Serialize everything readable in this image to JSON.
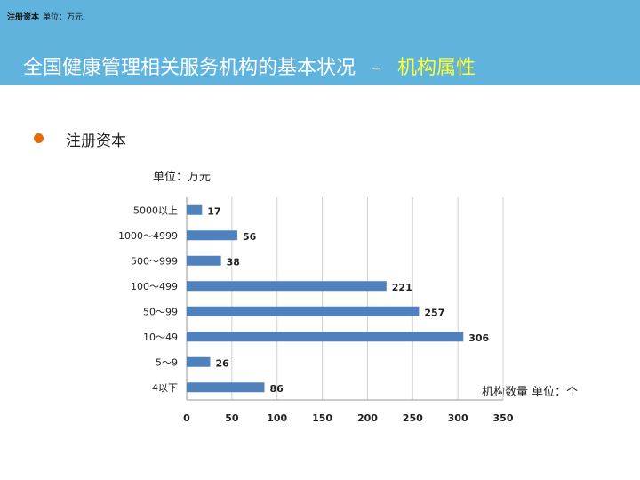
{
  "header": {
    "corner_bold": "注册资本",
    "corner_unit": "单位：万元",
    "title_main": "全国健康管理相关服务机构的基本状况",
    "title_dash": "–",
    "title_accent": "机构属性"
  },
  "section": {
    "label": "注册资本"
  },
  "colors": {
    "header_bg": "#5fb3dc",
    "accent": "#ffff33",
    "bullet": "#e36c0a",
    "bar": "#4f81bd",
    "grid": "#d0d0d0"
  },
  "chart_data": {
    "type": "bar",
    "orientation": "horizontal",
    "categories": [
      "5000以上",
      "1000～4999",
      "500～999",
      "100～499",
      "50～99",
      "10～49",
      "5～9",
      "4以下"
    ],
    "values": [
      17,
      56,
      38,
      221,
      257,
      306,
      26,
      86
    ],
    "x_ticks": [
      0,
      50,
      100,
      150,
      200,
      250,
      300,
      350
    ],
    "xlim": [
      0,
      350
    ],
    "grid": true,
    "unit_top": "单位：万元",
    "unit_right": "机构数量 单位：个"
  }
}
